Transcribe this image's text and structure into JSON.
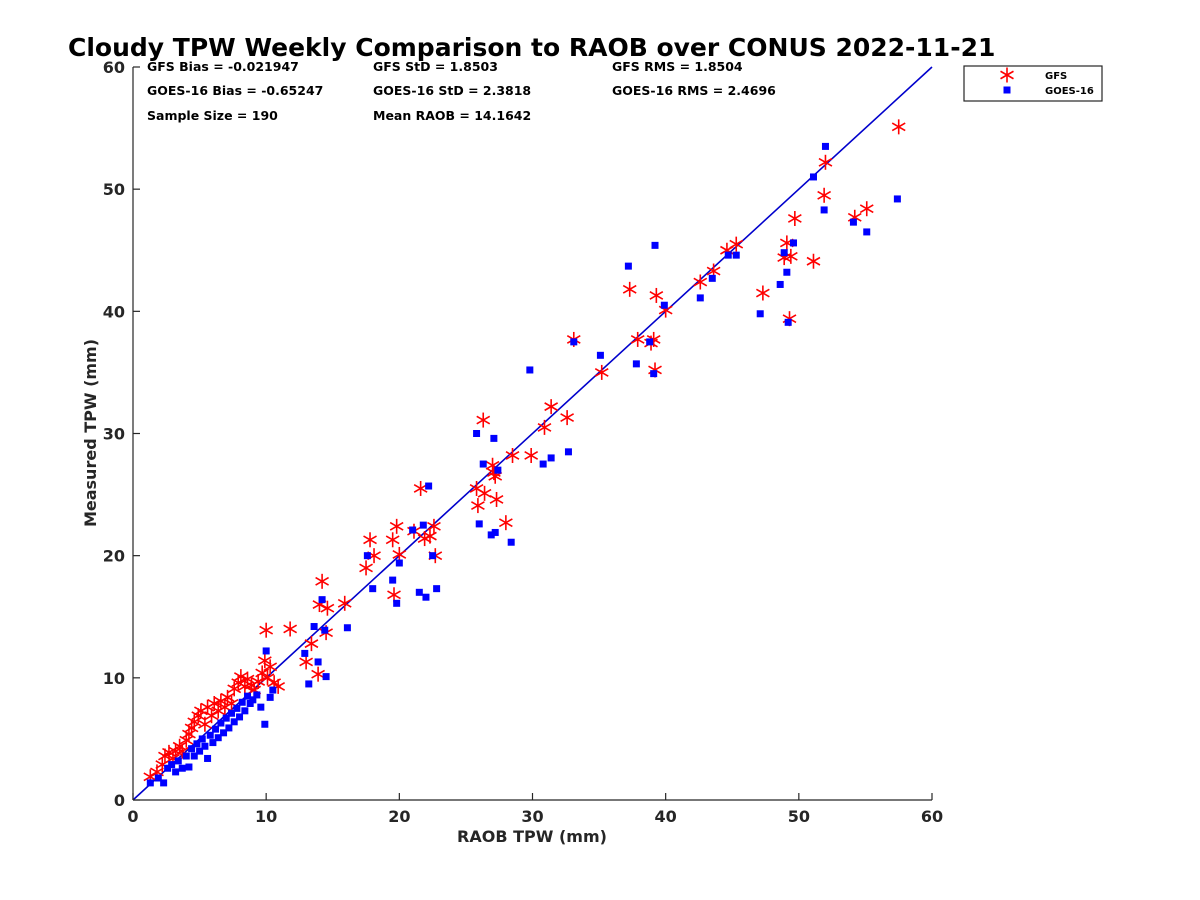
{
  "chart_data": {
    "type": "scatter",
    "title": "Cloudy TPW Weekly Comparison to RAOB over CONUS 2022-11-21",
    "xlabel": "RAOB TPW (mm)",
    "ylabel": "Measured TPW (mm)",
    "xlim": [
      0,
      60
    ],
    "ylim": [
      0,
      60
    ],
    "xticks": [
      0,
      10,
      20,
      30,
      40,
      50,
      60
    ],
    "yticks": [
      0,
      10,
      20,
      30,
      40,
      50,
      60
    ],
    "grid": false,
    "legend_position": "top-right",
    "reference_line": {
      "from": [
        0,
        0
      ],
      "to": [
        60,
        60
      ],
      "color": "#0000cc"
    },
    "stats": [
      {
        "text": "GFS Bias = -0.021947"
      },
      {
        "text": "GFS StD = 1.8503"
      },
      {
        "text": "GFS RMS = 1.8504"
      },
      {
        "text": "GOES-16 Bias = -0.65247"
      },
      {
        "text": "GOES-16 StD = 2.3818"
      },
      {
        "text": "GOES-16 RMS = 2.4696"
      },
      {
        "text": "Sample Size = 190"
      },
      {
        "text": "Mean RAOB = 14.1642"
      }
    ],
    "series": [
      {
        "name": "GFS",
        "marker": "asterisk",
        "color": "#ff0000",
        "points": [
          [
            1.3,
            1.9
          ],
          [
            1.8,
            2.3
          ],
          [
            2.2,
            2.9
          ],
          [
            2.4,
            3.6
          ],
          [
            2.7,
            3.9
          ],
          [
            3.0,
            3.4
          ],
          [
            3.2,
            4.0
          ],
          [
            3.5,
            4.4
          ],
          [
            3.7,
            4.0
          ],
          [
            4.0,
            4.9
          ],
          [
            4.2,
            5.4
          ],
          [
            4.4,
            5.9
          ],
          [
            4.6,
            6.4
          ],
          [
            4.9,
            6.9
          ],
          [
            5.1,
            7.3
          ],
          [
            5.4,
            6.2
          ],
          [
            5.6,
            7.6
          ],
          [
            5.9,
            6.9
          ],
          [
            6.1,
            7.9
          ],
          [
            6.4,
            7.3
          ],
          [
            6.6,
            8.1
          ],
          [
            6.9,
            7.6
          ],
          [
            7.1,
            8.4
          ],
          [
            7.4,
            7.9
          ],
          [
            7.6,
            9.1
          ],
          [
            7.9,
            9.6
          ],
          [
            8.1,
            10.1
          ],
          [
            8.4,
            9.3
          ],
          [
            8.6,
            9.9
          ],
          [
            8.9,
            9.4
          ],
          [
            9.1,
            9.0
          ],
          [
            9.4,
            9.7
          ],
          [
            9.7,
            10.4
          ],
          [
            9.9,
            11.4
          ],
          [
            10.1,
            10.0
          ],
          [
            10.3,
            10.9
          ],
          [
            10.6,
            9.6
          ],
          [
            10.9,
            9.3
          ],
          [
            10.0,
            13.9
          ],
          [
            11.8,
            14.0
          ],
          [
            13.0,
            11.3
          ],
          [
            13.4,
            12.8
          ],
          [
            13.9,
            10.3
          ],
          [
            14.0,
            16.0
          ],
          [
            14.2,
            17.9
          ],
          [
            14.5,
            13.7
          ],
          [
            14.6,
            15.7
          ],
          [
            15.9,
            16.1
          ],
          [
            17.5,
            19.0
          ],
          [
            17.8,
            21.3
          ],
          [
            18.1,
            20.0
          ],
          [
            19.5,
            21.3
          ],
          [
            19.8,
            22.4
          ],
          [
            20.0,
            20.1
          ],
          [
            19.6,
            16.8
          ],
          [
            21.1,
            22.0
          ],
          [
            21.6,
            25.5
          ],
          [
            21.9,
            21.4
          ],
          [
            22.3,
            21.6
          ],
          [
            22.6,
            22.4
          ],
          [
            22.7,
            20.0
          ],
          [
            25.8,
            25.5
          ],
          [
            25.9,
            24.1
          ],
          [
            26.4,
            25.1
          ],
          [
            26.3,
            31.1
          ],
          [
            27.0,
            27.4
          ],
          [
            27.1,
            26.8
          ],
          [
            27.2,
            26.5
          ],
          [
            27.3,
            24.6
          ],
          [
            28.0,
            22.7
          ],
          [
            28.5,
            28.2
          ],
          [
            29.9,
            28.2
          ],
          [
            30.9,
            30.5
          ],
          [
            31.4,
            32.2
          ],
          [
            32.6,
            31.3
          ],
          [
            33.1,
            37.7
          ],
          [
            35.2,
            35.0
          ],
          [
            37.3,
            41.8
          ],
          [
            37.9,
            37.7
          ],
          [
            38.9,
            37.4
          ],
          [
            39.1,
            37.7
          ],
          [
            39.2,
            35.2
          ],
          [
            39.3,
            41.3
          ],
          [
            40.0,
            40.1
          ],
          [
            42.6,
            42.4
          ],
          [
            43.6,
            43.3
          ],
          [
            44.6,
            45.0
          ],
          [
            45.3,
            45.5
          ],
          [
            47.3,
            41.5
          ],
          [
            48.9,
            44.4
          ],
          [
            49.1,
            45.6
          ],
          [
            49.3,
            39.4
          ],
          [
            49.4,
            44.5
          ],
          [
            49.7,
            47.6
          ],
          [
            51.1,
            44.1
          ],
          [
            51.9,
            49.5
          ],
          [
            52.0,
            52.2
          ],
          [
            54.2,
            47.7
          ],
          [
            55.1,
            48.4
          ],
          [
            57.5,
            55.1
          ]
        ]
      },
      {
        "name": "GOES-16",
        "marker": "square",
        "color": "#0000ff",
        "points": [
          [
            1.3,
            1.4
          ],
          [
            1.9,
            1.8
          ],
          [
            2.3,
            1.4
          ],
          [
            2.6,
            2.6
          ],
          [
            2.9,
            2.9
          ],
          [
            3.2,
            2.3
          ],
          [
            3.4,
            3.2
          ],
          [
            3.7,
            2.6
          ],
          [
            4.0,
            3.6
          ],
          [
            4.2,
            2.7
          ],
          [
            4.4,
            4.2
          ],
          [
            4.6,
            3.6
          ],
          [
            4.8,
            4.6
          ],
          [
            5.0,
            4.0
          ],
          [
            5.2,
            5.0
          ],
          [
            5.4,
            4.4
          ],
          [
            5.6,
            3.4
          ],
          [
            5.8,
            5.3
          ],
          [
            6.0,
            4.7
          ],
          [
            6.2,
            5.8
          ],
          [
            6.4,
            5.1
          ],
          [
            6.6,
            6.3
          ],
          [
            6.8,
            5.5
          ],
          [
            7.0,
            6.7
          ],
          [
            7.2,
            5.9
          ],
          [
            7.4,
            7.1
          ],
          [
            7.6,
            6.4
          ],
          [
            7.8,
            7.5
          ],
          [
            8.0,
            6.8
          ],
          [
            8.2,
            8.0
          ],
          [
            8.4,
            7.3
          ],
          [
            8.6,
            8.5
          ],
          [
            8.8,
            7.9
          ],
          [
            9.0,
            8.2
          ],
          [
            9.3,
            8.6
          ],
          [
            9.6,
            7.6
          ],
          [
            9.9,
            6.2
          ],
          [
            10.0,
            12.2
          ],
          [
            10.3,
            8.4
          ],
          [
            10.5,
            9.0
          ],
          [
            12.9,
            12.0
          ],
          [
            13.2,
            9.5
          ],
          [
            13.6,
            14.2
          ],
          [
            13.9,
            11.3
          ],
          [
            14.2,
            16.4
          ],
          [
            14.5,
            10.1
          ],
          [
            14.4,
            13.9
          ],
          [
            16.1,
            14.1
          ],
          [
            17.6,
            20.0
          ],
          [
            18.0,
            17.3
          ],
          [
            19.5,
            18.0
          ],
          [
            19.8,
            16.1
          ],
          [
            20.0,
            19.4
          ],
          [
            21.0,
            22.1
          ],
          [
            21.5,
            17.0
          ],
          [
            21.8,
            22.5
          ],
          [
            22.0,
            16.6
          ],
          [
            22.2,
            25.7
          ],
          [
            22.5,
            20.0
          ],
          [
            22.8,
            17.3
          ],
          [
            25.8,
            30.0
          ],
          [
            26.0,
            22.6
          ],
          [
            26.3,
            27.5
          ],
          [
            26.9,
            21.7
          ],
          [
            27.1,
            29.6
          ],
          [
            27.2,
            21.9
          ],
          [
            27.4,
            27.0
          ],
          [
            28.4,
            21.1
          ],
          [
            29.8,
            35.2
          ],
          [
            30.8,
            27.5
          ],
          [
            31.4,
            28.0
          ],
          [
            32.7,
            28.5
          ],
          [
            33.1,
            37.5
          ],
          [
            35.1,
            36.4
          ],
          [
            37.2,
            43.7
          ],
          [
            37.8,
            35.7
          ],
          [
            38.8,
            37.5
          ],
          [
            39.1,
            34.9
          ],
          [
            39.2,
            45.4
          ],
          [
            39.9,
            40.5
          ],
          [
            42.6,
            41.1
          ],
          [
            43.5,
            42.7
          ],
          [
            44.7,
            44.6
          ],
          [
            45.3,
            44.6
          ],
          [
            47.1,
            39.8
          ],
          [
            48.6,
            42.2
          ],
          [
            48.9,
            44.8
          ],
          [
            49.1,
            43.2
          ],
          [
            49.2,
            39.1
          ],
          [
            49.6,
            45.6
          ],
          [
            51.1,
            51.0
          ],
          [
            51.9,
            48.3
          ],
          [
            52.0,
            53.5
          ],
          [
            54.1,
            47.3
          ],
          [
            55.1,
            46.5
          ],
          [
            57.4,
            49.2
          ]
        ]
      }
    ]
  }
}
